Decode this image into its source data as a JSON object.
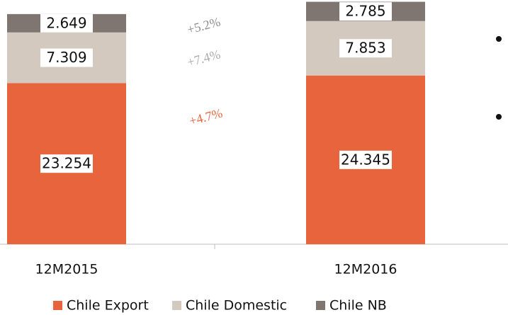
{
  "chart_data": {
    "type": "stacked_bar",
    "categories": [
      "12M2015",
      "12M2016"
    ],
    "series": [
      {
        "name": "Chile Export",
        "color": "#e8643c",
        "values": [
          23.254,
          24.345
        ]
      },
      {
        "name": "Chile Domestic",
        "color": "#d3c9bf",
        "values": [
          7.309,
          7.853
        ]
      },
      {
        "name": "Chile NB",
        "color": "#7f7571",
        "values": [
          2.649,
          2.785
        ]
      }
    ],
    "ylim": [
      0,
      35.24
    ],
    "annotations": [
      {
        "text": "+5.2%",
        "color": "#8c8c8c"
      },
      {
        "text": "+7.4%",
        "color": "#ababab"
      },
      {
        "text": "+4.7%",
        "color": "#e8643c"
      }
    ]
  }
}
